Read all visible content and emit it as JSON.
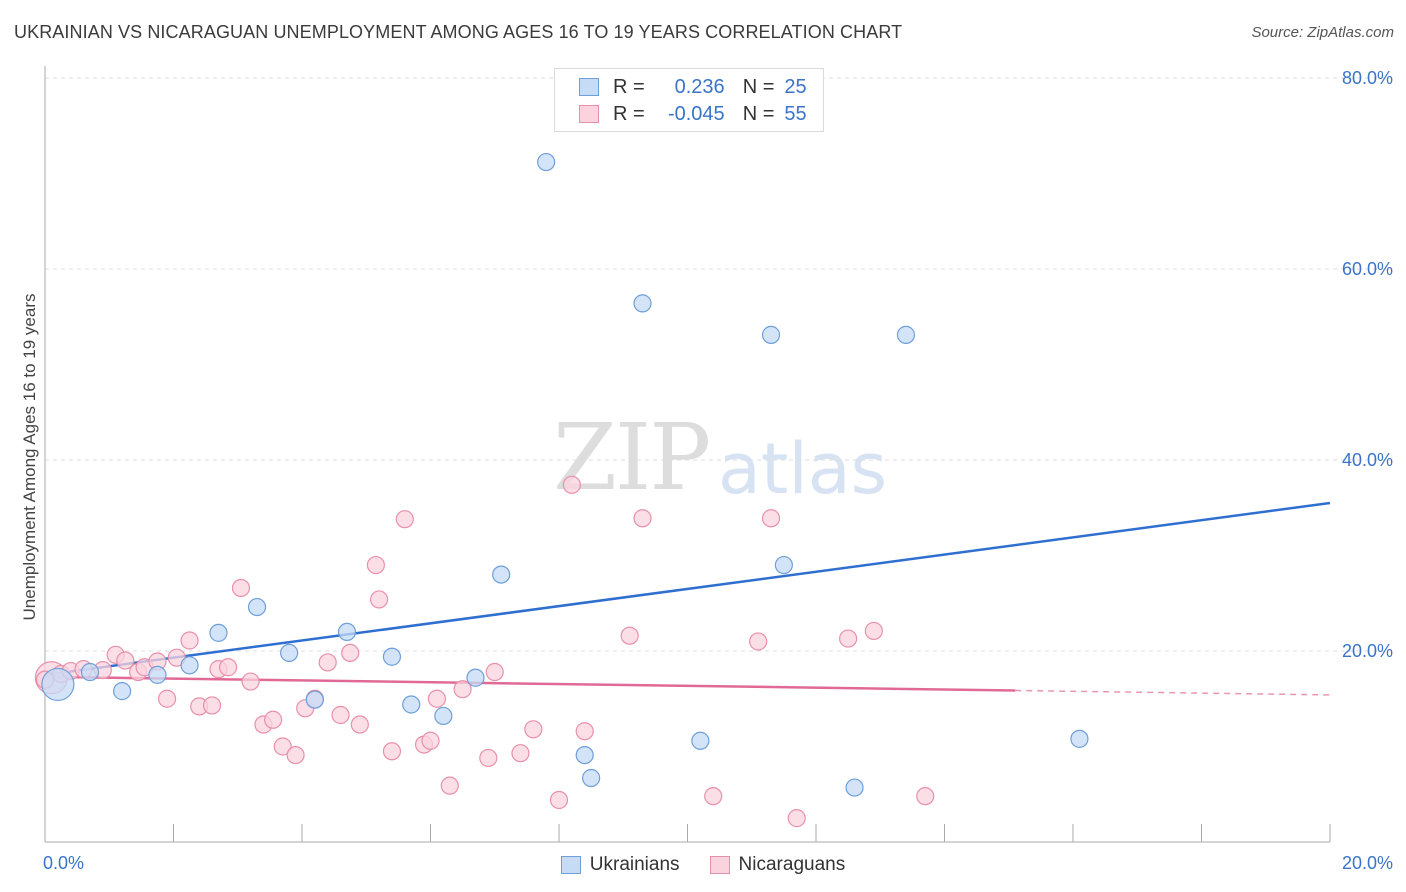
{
  "title": "UKRAINIAN VS NICARAGUAN UNEMPLOYMENT AMONG AGES 16 TO 19 YEARS CORRELATION CHART",
  "source": "Source: ZipAtlas.com",
  "watermark": {
    "zip": "ZIP",
    "atlas": "atlas"
  },
  "legend": {
    "rows": [
      {
        "r_label": "R =",
        "r_value": "0.236",
        "n_label": "N =",
        "n_value": "25",
        "color": "#a8c8f0",
        "border": "#6e9fd8"
      },
      {
        "r_label": "R =",
        "r_value": "-0.045",
        "n_label": "N =",
        "n_value": "55",
        "color": "#f8c0d0",
        "border": "#e890aa"
      }
    ]
  },
  "bottom_legend": [
    {
      "label": "Ukrainians",
      "color": "#c6dbf5",
      "border": "#6e9fd8"
    },
    {
      "label": "Nicaraguans",
      "color": "#fbd3df",
      "border": "#e890aa"
    }
  ],
  "chart_data": {
    "type": "scatter",
    "title": "UKRAINIAN VS NICARAGUAN UNEMPLOYMENT AMONG AGES 16 TO 19 YEARS CORRELATION CHART",
    "xlabel": "",
    "ylabel": "Unemployment Among Ages 16 to 19 years",
    "xlim": [
      0,
      20
    ],
    "ylim": [
      0,
      80
    ],
    "x_tick_labels": [
      {
        "value": 0,
        "label": "0.0%",
        "pos": "left"
      },
      {
        "value": 20,
        "label": "20.0%",
        "pos": "right"
      }
    ],
    "y_tick_labels": [
      {
        "value": 20,
        "label": "20.0%"
      },
      {
        "value": 40,
        "label": "40.0%"
      },
      {
        "value": 60,
        "label": "60.0%"
      },
      {
        "value": 80,
        "label": "80.0%"
      }
    ],
    "x_minor_ticks": [
      2,
      4,
      6,
      8,
      10,
      12,
      14,
      16,
      18,
      20
    ],
    "series": [
      {
        "name": "Ukrainians",
        "color": "#6e9fd8",
        "fill": "#c6dbf5",
        "line_color": "#2f6fd0",
        "trend": {
          "x": [
            0,
            20
          ],
          "y": [
            17.5,
            35.5
          ],
          "solid_until": 20
        },
        "points": [
          [
            0.2,
            16.5,
            "large"
          ],
          [
            0.7,
            17.8
          ],
          [
            1.2,
            15.8
          ],
          [
            1.75,
            17.5
          ],
          [
            2.25,
            18.5
          ],
          [
            2.7,
            21.9
          ],
          [
            3.3,
            24.6
          ],
          [
            3.8,
            19.8
          ],
          [
            4.2,
            14.9
          ],
          [
            4.7,
            22.0
          ],
          [
            5.4,
            19.4
          ],
          [
            5.7,
            14.4
          ],
          [
            6.2,
            13.2
          ],
          [
            6.7,
            17.2
          ],
          [
            7.1,
            28.0
          ],
          [
            7.8,
            71.2
          ],
          [
            8.4,
            9.1
          ],
          [
            8.5,
            6.7
          ],
          [
            9.3,
            56.4
          ],
          [
            10.2,
            10.6
          ],
          [
            11.3,
            53.1
          ],
          [
            11.5,
            29.0
          ],
          [
            12.6,
            5.7
          ],
          [
            13.4,
            53.1
          ],
          [
            16.1,
            10.8
          ]
        ]
      },
      {
        "name": "Nicaraguans",
        "color": "#e890aa",
        "fill": "#fbd3df",
        "line_color": "#e06a95",
        "trend": {
          "x": [
            0,
            20
          ],
          "y": [
            17.3,
            15.4
          ],
          "solid_until": 15.1
        },
        "points": [
          [
            0.1,
            17.2,
            "large"
          ],
          [
            0.25,
            17.6
          ],
          [
            0.4,
            17.9
          ],
          [
            0.6,
            18.1
          ],
          [
            0.9,
            18.0
          ],
          [
            1.1,
            19.6
          ],
          [
            1.25,
            19.0
          ],
          [
            1.45,
            17.8
          ],
          [
            1.55,
            18.3
          ],
          [
            1.75,
            18.9
          ],
          [
            1.9,
            15.0
          ],
          [
            2.05,
            19.3
          ],
          [
            2.25,
            21.1
          ],
          [
            2.4,
            14.2
          ],
          [
            2.6,
            14.3
          ],
          [
            2.7,
            18.1
          ],
          [
            2.85,
            18.3
          ],
          [
            3.05,
            26.6
          ],
          [
            3.2,
            16.8
          ],
          [
            3.4,
            12.3
          ],
          [
            3.55,
            12.8
          ],
          [
            3.7,
            10.0
          ],
          [
            3.9,
            9.1
          ],
          [
            4.05,
            14.0
          ],
          [
            4.2,
            15.0
          ],
          [
            4.4,
            18.8
          ],
          [
            4.6,
            13.3
          ],
          [
            4.75,
            19.8
          ],
          [
            4.9,
            12.3
          ],
          [
            5.15,
            29.0
          ],
          [
            5.2,
            25.4
          ],
          [
            5.4,
            9.5
          ],
          [
            5.6,
            33.8
          ],
          [
            5.9,
            10.2
          ],
          [
            6.0,
            10.6
          ],
          [
            6.1,
            15.0
          ],
          [
            6.3,
            5.9
          ],
          [
            6.5,
            16.0
          ],
          [
            6.9,
            8.8
          ],
          [
            7.0,
            17.8
          ],
          [
            7.4,
            9.3
          ],
          [
            7.6,
            11.8
          ],
          [
            8.0,
            4.4
          ],
          [
            8.2,
            37.4
          ],
          [
            8.4,
            11.6
          ],
          [
            9.1,
            21.6
          ],
          [
            9.3,
            33.9
          ],
          [
            10.4,
            4.8
          ],
          [
            11.1,
            21.0
          ],
          [
            11.3,
            33.9
          ],
          [
            11.7,
            2.5
          ],
          [
            12.5,
            21.3
          ],
          [
            12.9,
            22.1
          ],
          [
            13.7,
            4.8
          ],
          [
            0.0,
            17.0
          ]
        ]
      }
    ]
  }
}
